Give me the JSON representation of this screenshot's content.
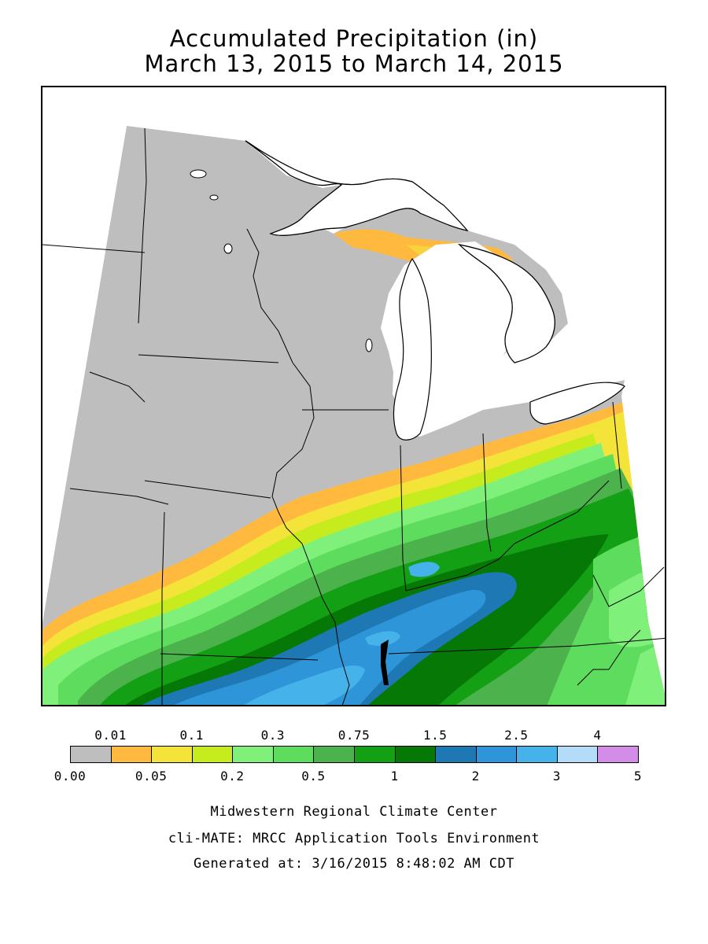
{
  "title": {
    "line1": "Accumulated Precipitation (in)",
    "line2": "March 13, 2015 to March 14, 2015"
  },
  "map": {
    "region": "Midwestern United States",
    "colors": {
      "land_no_precip": "#bebebe",
      "water": "#ffffff",
      "outline": "#000000"
    }
  },
  "legend": {
    "top_labels": [
      "0.01",
      "0.1",
      "0.3",
      "0.75",
      "1.5",
      "2.5",
      "4"
    ],
    "bottom_labels": [
      "0.00",
      "0.05",
      "0.2",
      "0.5",
      "1",
      "2",
      "3",
      "5"
    ],
    "colors": [
      "#bebebe",
      "#ffb93e",
      "#f4e43a",
      "#c6ec1e",
      "#7ff07a",
      "#5edc5e",
      "#4cb24c",
      "#14a014",
      "#067806",
      "#1e78b4",
      "#2e96d8",
      "#46b2ea",
      "#b4dcf8",
      "#d38ce8"
    ]
  },
  "footer": {
    "line1": "Midwestern Regional Climate Center",
    "line2": "cli-MATE: MRCC Application Tools Environment",
    "line3": "Generated at: 3/16/2015 8:48:02 AM CDT"
  }
}
